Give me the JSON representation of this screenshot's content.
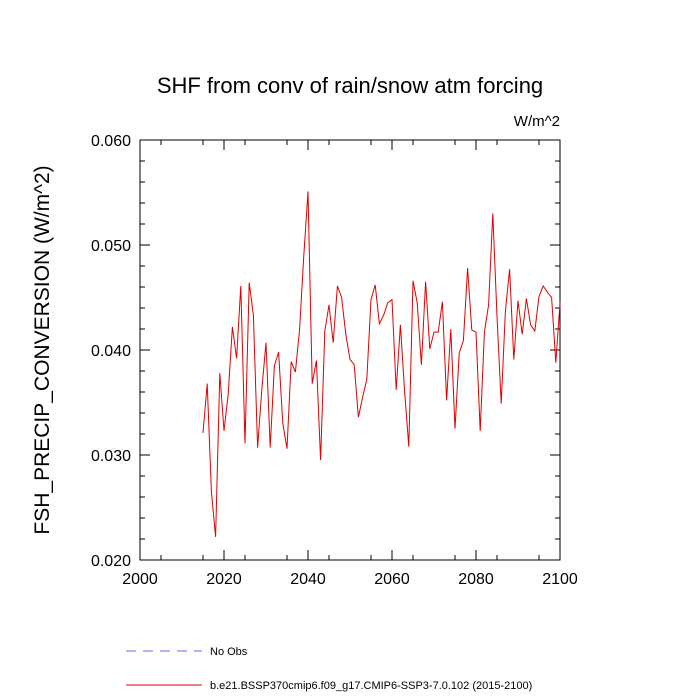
{
  "chart_data": {
    "type": "line",
    "title": "SHF from conv of rain/snow atm forcing",
    "units": "W/m^2",
    "ylabel": "FSH_PRECIP_CONVERSION  (W/m^2)",
    "xlabel": "",
    "xlim": [
      2000,
      2100
    ],
    "ylim": [
      0.02,
      0.06
    ],
    "x_ticks": [
      "2000",
      "2020",
      "2040",
      "2060",
      "2080",
      "2100"
    ],
    "y_ticks": [
      "0.020",
      "0.030",
      "0.040",
      "0.050",
      "0.060"
    ],
    "grid": false,
    "legend_position": "bottom",
    "legend": [
      {
        "name": "No Obs",
        "color": "#6666ff",
        "style": "dashed"
      },
      {
        "name": "b.e21.BSSP370cmip6.f09_g17.CMIP6-SSP3-7.0.102 (2015-2100)",
        "color": "#e00000",
        "style": "solid"
      }
    ],
    "series": [
      {
        "name": "b.e21.BSSP370cmip6.f09_g17.CMIP6-SSP3-7.0.102 (2015-2100)",
        "color": "#e00000",
        "x": [
          2015,
          2016,
          2017,
          2018,
          2019,
          2020,
          2021,
          2022,
          2023,
          2024,
          2025,
          2026,
          2027,
          2028,
          2029,
          2030,
          2031,
          2032,
          2033,
          2034,
          2035,
          2036,
          2037,
          2038,
          2039,
          2040,
          2041,
          2042,
          2043,
          2044,
          2045,
          2046,
          2047,
          2048,
          2049,
          2050,
          2051,
          2052,
          2053,
          2054,
          2055,
          2056,
          2057,
          2058,
          2059,
          2060,
          2061,
          2062,
          2063,
          2064,
          2065,
          2066,
          2067,
          2068,
          2069,
          2070,
          2071,
          2072,
          2073,
          2074,
          2075,
          2076,
          2077,
          2078,
          2079,
          2080,
          2081,
          2082,
          2083,
          2084,
          2085,
          2086,
          2087,
          2088,
          2089,
          2090,
          2091,
          2092,
          2093,
          2094,
          2095,
          2096,
          2097,
          2098,
          2099,
          2100
        ],
        "y": [
          0.0321,
          0.0368,
          0.0265,
          0.0222,
          0.0378,
          0.0323,
          0.0358,
          0.0422,
          0.0392,
          0.0461,
          0.0311,
          0.0464,
          0.0433,
          0.0307,
          0.0362,
          0.0407,
          0.0307,
          0.0385,
          0.0398,
          0.033,
          0.0306,
          0.0389,
          0.0379,
          0.042,
          0.049,
          0.0551,
          0.0368,
          0.039,
          0.0295,
          0.0418,
          0.0443,
          0.0407,
          0.0461,
          0.045,
          0.0415,
          0.0391,
          0.0386,
          0.0336,
          0.0355,
          0.0372,
          0.0448,
          0.0462,
          0.0425,
          0.0433,
          0.0445,
          0.0448,
          0.0362,
          0.0424,
          0.0361,
          0.0308,
          0.0466,
          0.0445,
          0.0386,
          0.0465,
          0.0401,
          0.0417,
          0.0417,
          0.0446,
          0.0352,
          0.042,
          0.0325,
          0.0397,
          0.0409,
          0.0478,
          0.0419,
          0.0417,
          0.0323,
          0.0417,
          0.0443,
          0.053,
          0.0432,
          0.0349,
          0.0437,
          0.0477,
          0.0391,
          0.0447,
          0.0415,
          0.0449,
          0.0424,
          0.0418,
          0.0451,
          0.0461,
          0.0455,
          0.045,
          0.0388,
          0.0445
        ]
      }
    ]
  }
}
